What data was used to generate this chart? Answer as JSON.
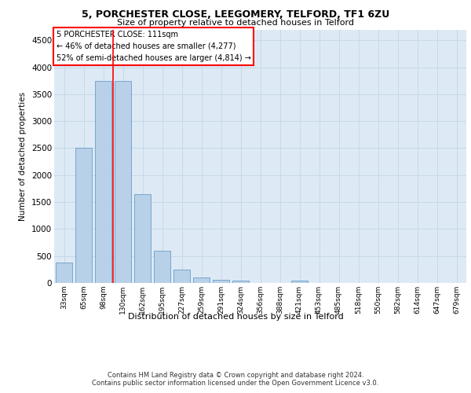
{
  "title1": "5, PORCHESTER CLOSE, LEEGOMERY, TELFORD, TF1 6ZU",
  "title2": "Size of property relative to detached houses in Telford",
  "xlabel": "Distribution of detached houses by size in Telford",
  "ylabel": "Number of detached properties",
  "footer1": "Contains HM Land Registry data © Crown copyright and database right 2024.",
  "footer2": "Contains public sector information licensed under the Open Government Licence v3.0.",
  "categories": [
    "33sqm",
    "65sqm",
    "98sqm",
    "130sqm",
    "162sqm",
    "195sqm",
    "227sqm",
    "259sqm",
    "291sqm",
    "324sqm",
    "356sqm",
    "388sqm",
    "421sqm",
    "453sqm",
    "485sqm",
    "518sqm",
    "550sqm",
    "582sqm",
    "614sqm",
    "647sqm",
    "679sqm"
  ],
  "values": [
    375,
    2500,
    3750,
    3750,
    1640,
    600,
    245,
    105,
    55,
    40,
    0,
    0,
    50,
    0,
    0,
    0,
    0,
    0,
    0,
    0,
    0
  ],
  "bar_color": "#b8d0e8",
  "bar_edge_color": "#6a9fc8",
  "red_line_x": 2.5,
  "annotation_title": "5 PORCHESTER CLOSE: 111sqm",
  "annotation_line1": "← 46% of detached houses are smaller (4,277)",
  "annotation_line2": "52% of semi-detached houses are larger (4,814) →",
  "ylim": [
    0,
    4700
  ],
  "yticks": [
    0,
    500,
    1000,
    1500,
    2000,
    2500,
    3000,
    3500,
    4000,
    4500
  ],
  "grid_color": "#c8d8e8",
  "background_color": "#ddeaf5"
}
